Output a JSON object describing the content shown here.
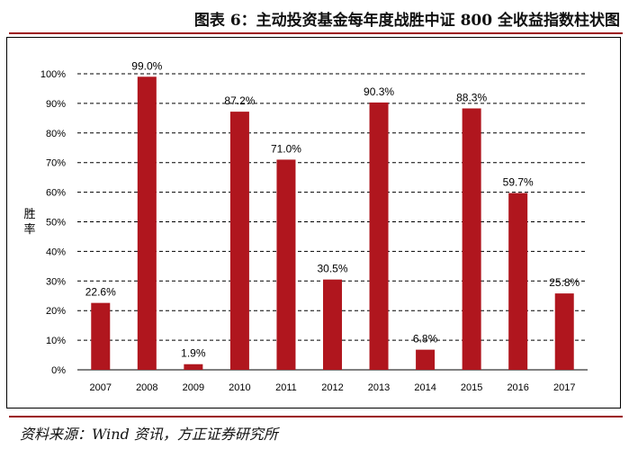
{
  "title": "图表 6：主动投资基金每年度战胜中证 800 全收益指数柱状图",
  "source": "资料来源：Wind 资讯，方正证券研究所",
  "colors": {
    "bar": "#b0161e",
    "rule": "#9b0e14"
  },
  "chart_data": {
    "type": "bar",
    "title": "",
    "xlabel": "",
    "ylabel": "胜率",
    "ylim": [
      0,
      100
    ],
    "y_ticks": [
      "0%",
      "10%",
      "20%",
      "30%",
      "40%",
      "50%",
      "60%",
      "70%",
      "80%",
      "90%",
      "100%"
    ],
    "grid": "horizontal dashed",
    "categories": [
      "2007",
      "2008",
      "2009",
      "2010",
      "2011",
      "2012",
      "2013",
      "2014",
      "2015",
      "2016",
      "2017"
    ],
    "values": [
      22.6,
      99.0,
      1.9,
      87.2,
      71.0,
      30.5,
      90.3,
      6.8,
      88.3,
      59.7,
      25.8
    ],
    "value_labels": [
      "22.6%",
      "99.0%",
      "1.9%",
      "87.2%",
      "71.0%",
      "30.5%",
      "90.3%",
      "6.8%",
      "88.3%",
      "59.7%",
      "25.8%"
    ]
  }
}
